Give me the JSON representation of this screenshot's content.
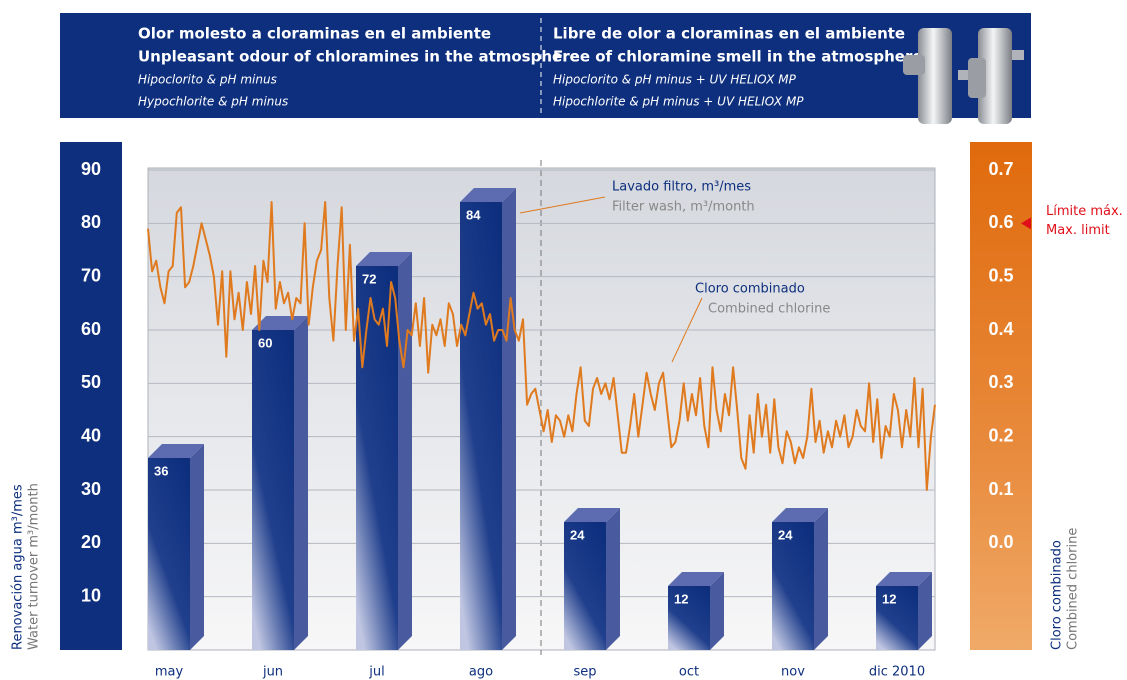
{
  "header": {
    "left": {
      "title_es": "Olor molesto a cloraminas en el ambiente",
      "title_en": "Unpleasant odour of chloramines in the atmosphere",
      "sub_es": "Hipoclorito & pH minus",
      "sub_en": "Hypochlorite & pH minus"
    },
    "right": {
      "title_es": "Libre de olor a cloraminas en el ambiente",
      "title_en": "Free of chloramine smell in the atmosphere",
      "sub_es": "Hipoclorito & pH minus + UV HELIOX MP",
      "sub_en": "Hipochlorite & pH minus + UV HELIOX MP"
    }
  },
  "chart_data": [
    {
      "type": "bar",
      "categories": [
        "may",
        "jun",
        "jul",
        "ago",
        "sep",
        "oct",
        "nov",
        "dic 2010"
      ],
      "values": [
        36,
        60,
        72,
        84,
        24,
        12,
        24,
        12
      ],
      "color": "#0d2f7e",
      "ylim": [
        0,
        90
      ],
      "yticks": [
        10,
        20,
        30,
        40,
        50,
        60,
        70,
        80,
        90
      ],
      "grid": true,
      "ylabel": [
        "Renovación agua m³/mes",
        "Water turnover m³/month"
      ],
      "annotations": [
        "Lavado filtro, m³/mes",
        "Filter wash, m³/month"
      ]
    },
    {
      "type": "line",
      "axis": "y2",
      "color": "#e07a1e",
      "y2lim": [
        -0.2,
        0.7
      ],
      "y2ticks": [
        {
          "value": 0,
          "label": "0.0"
        },
        0.1,
        0.2,
        0.3,
        0.4,
        0.5,
        0.6,
        0.7
      ],
      "y2label": [
        "Cloro combinado",
        "Combined chlorine"
      ],
      "annotations": [
        "Cloro combinado",
        "Combined chlorine"
      ],
      "limit": {
        "value": 0.6,
        "labels": [
          "Límite máx.",
          "Max. limit"
        ]
      },
      "values": [
        0.59,
        0.51,
        0.53,
        0.48,
        0.45,
        0.51,
        0.52,
        0.62,
        0.63,
        0.48,
        0.49,
        0.52,
        0.56,
        0.6,
        0.57,
        0.54,
        0.5,
        0.41,
        0.51,
        0.35,
        0.51,
        0.42,
        0.47,
        0.4,
        0.49,
        0.43,
        0.52,
        0.4,
        0.53,
        0.49,
        0.64,
        0.44,
        0.49,
        0.45,
        0.47,
        0.42,
        0.46,
        0.45,
        0.6,
        0.41,
        0.48,
        0.53,
        0.55,
        0.64,
        0.46,
        0.38,
        0.52,
        0.63,
        0.4,
        0.56,
        0.38,
        0.44,
        0.33,
        0.4,
        0.46,
        0.42,
        0.41,
        0.44,
        0.37,
        0.49,
        0.46,
        0.38,
        0.33,
        0.4,
        0.39,
        0.45,
        0.37,
        0.46,
        0.32,
        0.41,
        0.39,
        0.42,
        0.37,
        0.45,
        0.43,
        0.37,
        0.41,
        0.39,
        0.43,
        0.47,
        0.44,
        0.45,
        0.41,
        0.43,
        0.38,
        0.4,
        0.4,
        0.38,
        0.46,
        0.4,
        0.38,
        0.42,
        0.26,
        0.28,
        0.29,
        0.25,
        0.21,
        0.25,
        0.19,
        0.24,
        0.23,
        0.2,
        0.24,
        0.21,
        0.28,
        0.33,
        0.23,
        0.22,
        0.29,
        0.31,
        0.28,
        0.3,
        0.27,
        0.31,
        0.24,
        0.17,
        0.17,
        0.22,
        0.28,
        0.2,
        0.26,
        0.32,
        0.28,
        0.25,
        0.3,
        0.32,
        0.25,
        0.18,
        0.19,
        0.23,
        0.3,
        0.23,
        0.28,
        0.24,
        0.31,
        0.22,
        0.18,
        0.33,
        0.25,
        0.21,
        0.28,
        0.24,
        0.33,
        0.25,
        0.16,
        0.14,
        0.24,
        0.17,
        0.28,
        0.2,
        0.26,
        0.17,
        0.27,
        0.18,
        0.15,
        0.21,
        0.19,
        0.15,
        0.18,
        0.16,
        0.2,
        0.29,
        0.19,
        0.23,
        0.17,
        0.21,
        0.18,
        0.23,
        0.2,
        0.24,
        0.18,
        0.2,
        0.25,
        0.22,
        0.21,
        0.3,
        0.19,
        0.27,
        0.16,
        0.22,
        0.2,
        0.28,
        0.25,
        0.18,
        0.25,
        0.2,
        0.31,
        0.18,
        0.29,
        0.1,
        0.2,
        0.26
      ]
    }
  ]
}
